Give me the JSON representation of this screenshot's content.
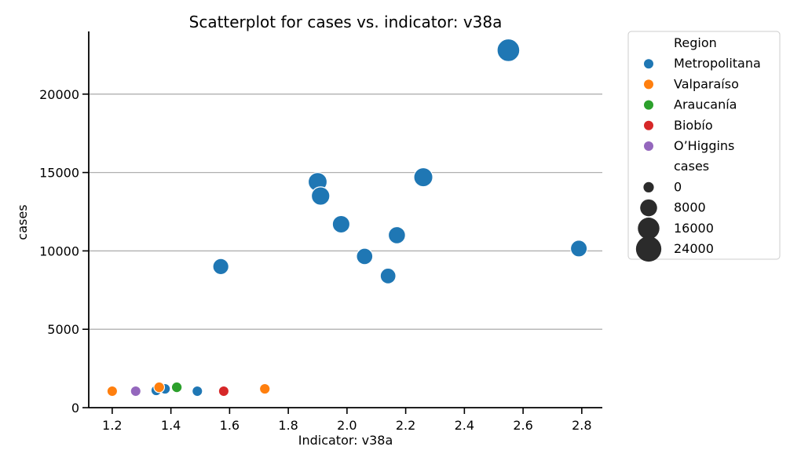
{
  "chart_data": {
    "type": "scatter",
    "title": "Scatterplot for cases vs. indicator: v38a",
    "xlabel": "Indicator: v38a",
    "ylabel": "cases",
    "xlim": [
      1.12,
      2.87
    ],
    "ylim": [
      0,
      24000
    ],
    "xticks": [
      1.2,
      1.4,
      1.6,
      1.8,
      2.0,
      2.2,
      2.4,
      2.6,
      2.8
    ],
    "xtick_labels": [
      "1.2",
      "1.4",
      "1.6",
      "1.8",
      "2.0",
      "2.2",
      "2.4",
      "2.6",
      "2.8"
    ],
    "yticks": [
      0,
      5000,
      10000,
      15000,
      20000
    ],
    "ytick_labels": [
      "0",
      "5000",
      "10000",
      "15000",
      "20000"
    ],
    "grid": "horizontal",
    "legend": {
      "placement": "outside-right",
      "hue_title": "Region",
      "size_title": "cases",
      "size_entries": [
        {
          "label": "0",
          "value": 0
        },
        {
          "label": "8000",
          "value": 8000
        },
        {
          "label": "16000",
          "value": 16000
        },
        {
          "label": "24000",
          "value": 24000
        }
      ]
    },
    "series": [
      {
        "name": "Metropolitana",
        "color": "#1f77b4",
        "points": [
          {
            "x": 2.55,
            "y": 22800
          },
          {
            "x": 1.9,
            "y": 14400
          },
          {
            "x": 1.91,
            "y": 13500
          },
          {
            "x": 2.26,
            "y": 14700
          },
          {
            "x": 1.98,
            "y": 11700
          },
          {
            "x": 2.17,
            "y": 11000
          },
          {
            "x": 2.79,
            "y": 10150
          },
          {
            "x": 2.06,
            "y": 9650
          },
          {
            "x": 2.14,
            "y": 8400
          },
          {
            "x": 1.57,
            "y": 9000
          },
          {
            "x": 1.38,
            "y": 1200
          },
          {
            "x": 1.35,
            "y": 1100
          },
          {
            "x": 1.49,
            "y": 1050
          }
        ]
      },
      {
        "name": "Valparaíso",
        "color": "#ff7f0e",
        "points": [
          {
            "x": 1.2,
            "y": 1050
          },
          {
            "x": 1.36,
            "y": 1300
          },
          {
            "x": 1.72,
            "y": 1200
          }
        ]
      },
      {
        "name": "Araucanía",
        "color": "#2ca02c",
        "points": [
          {
            "x": 1.42,
            "y": 1300
          }
        ]
      },
      {
        "name": "Biobío",
        "color": "#d62728",
        "points": [
          {
            "x": 1.58,
            "y": 1050
          }
        ]
      },
      {
        "name": "O’Higgins",
        "color": "#9467bd",
        "points": [
          {
            "x": 1.28,
            "y": 1050
          }
        ]
      }
    ]
  }
}
